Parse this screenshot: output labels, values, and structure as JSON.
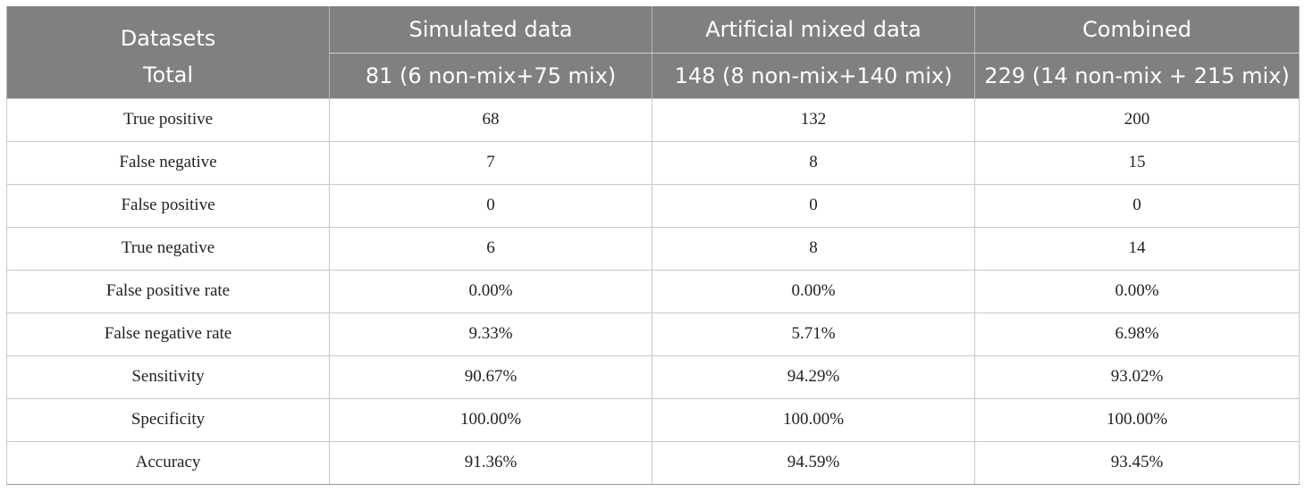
{
  "header": {
    "row1": [
      "Datasets",
      "Simulated data",
      "Artificial mixed data",
      "Combined"
    ],
    "row2": [
      "Total",
      "81 (6 non-mix+75 mix)",
      "148 (8 non-mix+140 mix)",
      "229 (14 non-mix + 215 mix)"
    ]
  },
  "rows": [
    [
      "True positive",
      "68",
      "132",
      "200"
    ],
    [
      "False negative",
      "7",
      "8",
      "15"
    ],
    [
      "False positive",
      "0",
      "0",
      "0"
    ],
    [
      "True negative",
      "6",
      "8",
      "14"
    ],
    [
      "False positive rate",
      "0.00%",
      "0.00%",
      "0.00%"
    ],
    [
      "False negative rate",
      "9.33%",
      "5.71%",
      "6.98%"
    ],
    [
      "Sensitivity",
      "90.67%",
      "94.29%",
      "93.02%"
    ],
    [
      "Specificity",
      "100.00%",
      "100.00%",
      "100.00%"
    ],
    [
      "Accuracy",
      "91.36%",
      "94.59%",
      "93.45%"
    ]
  ],
  "colors": {
    "header_bg": "#808080",
    "header_text": "#ffffff",
    "grid": "#c8c8c8"
  }
}
